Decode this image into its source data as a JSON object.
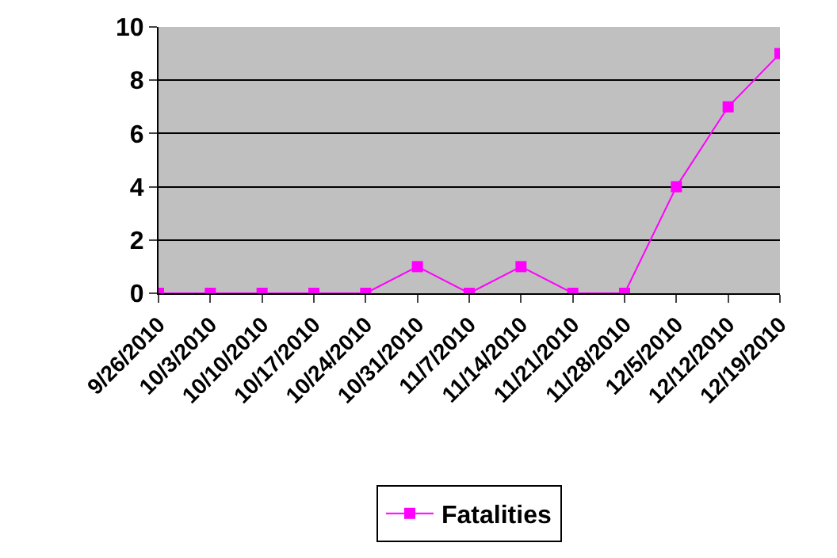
{
  "chart_data": {
    "type": "line",
    "categories": [
      "9/26/2010",
      "10/3/2010",
      "10/10/2010",
      "10/17/2010",
      "10/24/2010",
      "10/31/2010",
      "11/7/2010",
      "11/14/2010",
      "11/21/2010",
      "11/28/2010",
      "12/5/2010",
      "12/12/2010",
      "12/19/2010"
    ],
    "series": [
      {
        "name": "Fatalities",
        "color": "#ff00ff",
        "values": [
          0,
          0,
          0,
          0,
          0,
          1,
          0,
          1,
          0,
          0,
          4,
          7,
          9
        ]
      }
    ],
    "ylim": [
      0,
      10
    ],
    "yticks": [
      0,
      2,
      4,
      6,
      8,
      10
    ],
    "grid": "y",
    "legend": "bottom",
    "marker": "square",
    "line_style": "solid"
  }
}
